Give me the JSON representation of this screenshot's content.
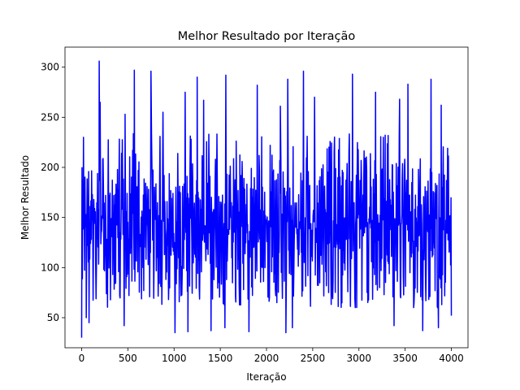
{
  "chart_data": {
    "type": "line",
    "title": "Melhor Resultado por Iteração",
    "xlabel": "Iteração",
    "ylabel": "Melhor Resultado",
    "xlim": [
      -180,
      4180
    ],
    "ylim": [
      20,
      320
    ],
    "x_ticks": [
      0,
      500,
      1000,
      1500,
      2000,
      2500,
      3000,
      3500,
      4000
    ],
    "x_tick_labels": [
      "0",
      "500",
      "1000",
      "1500",
      "2000",
      "2500",
      "3000",
      "3500",
      "4000"
    ],
    "y_ticks": [
      50,
      100,
      150,
      200,
      250,
      300
    ],
    "y_tick_labels": [
      "50",
      "100",
      "150",
      "200",
      "250",
      "300"
    ],
    "grid": false,
    "series": [
      {
        "color": "#0000ff",
        "x_range": [
          0,
          4000
        ],
        "noise_band": {
          "typical_low": 75,
          "typical_high": 200,
          "min": 30,
          "max": 306,
          "mean": 135
        },
        "peaks": [
          {
            "x": 20,
            "y": 230
          },
          {
            "x": 190,
            "y": 306
          },
          {
            "x": 200,
            "y": 265
          },
          {
            "x": 470,
            "y": 253
          },
          {
            "x": 570,
            "y": 297
          },
          {
            "x": 750,
            "y": 296
          },
          {
            "x": 880,
            "y": 255
          },
          {
            "x": 1120,
            "y": 275
          },
          {
            "x": 1250,
            "y": 290
          },
          {
            "x": 1320,
            "y": 267
          },
          {
            "x": 1560,
            "y": 292
          },
          {
            "x": 1900,
            "y": 282
          },
          {
            "x": 2150,
            "y": 261
          },
          {
            "x": 2230,
            "y": 288
          },
          {
            "x": 2400,
            "y": 296
          },
          {
            "x": 2520,
            "y": 270
          },
          {
            "x": 2930,
            "y": 293
          },
          {
            "x": 3180,
            "y": 275
          },
          {
            "x": 3440,
            "y": 268
          },
          {
            "x": 3530,
            "y": 283
          },
          {
            "x": 3780,
            "y": 288
          },
          {
            "x": 3890,
            "y": 262
          }
        ],
        "troughs": [
          {
            "x": 0,
            "y": 30
          },
          {
            "x": 50,
            "y": 50
          },
          {
            "x": 80,
            "y": 45
          },
          {
            "x": 460,
            "y": 42
          },
          {
            "x": 1010,
            "y": 35
          },
          {
            "x": 1150,
            "y": 36
          },
          {
            "x": 1400,
            "y": 37
          },
          {
            "x": 1550,
            "y": 40
          },
          {
            "x": 1810,
            "y": 36
          },
          {
            "x": 2210,
            "y": 35
          },
          {
            "x": 2280,
            "y": 40
          },
          {
            "x": 3380,
            "y": 42
          },
          {
            "x": 3690,
            "y": 37
          },
          {
            "x": 3860,
            "y": 40
          },
          {
            "x": 4000,
            "y": 52
          }
        ]
      }
    ]
  }
}
